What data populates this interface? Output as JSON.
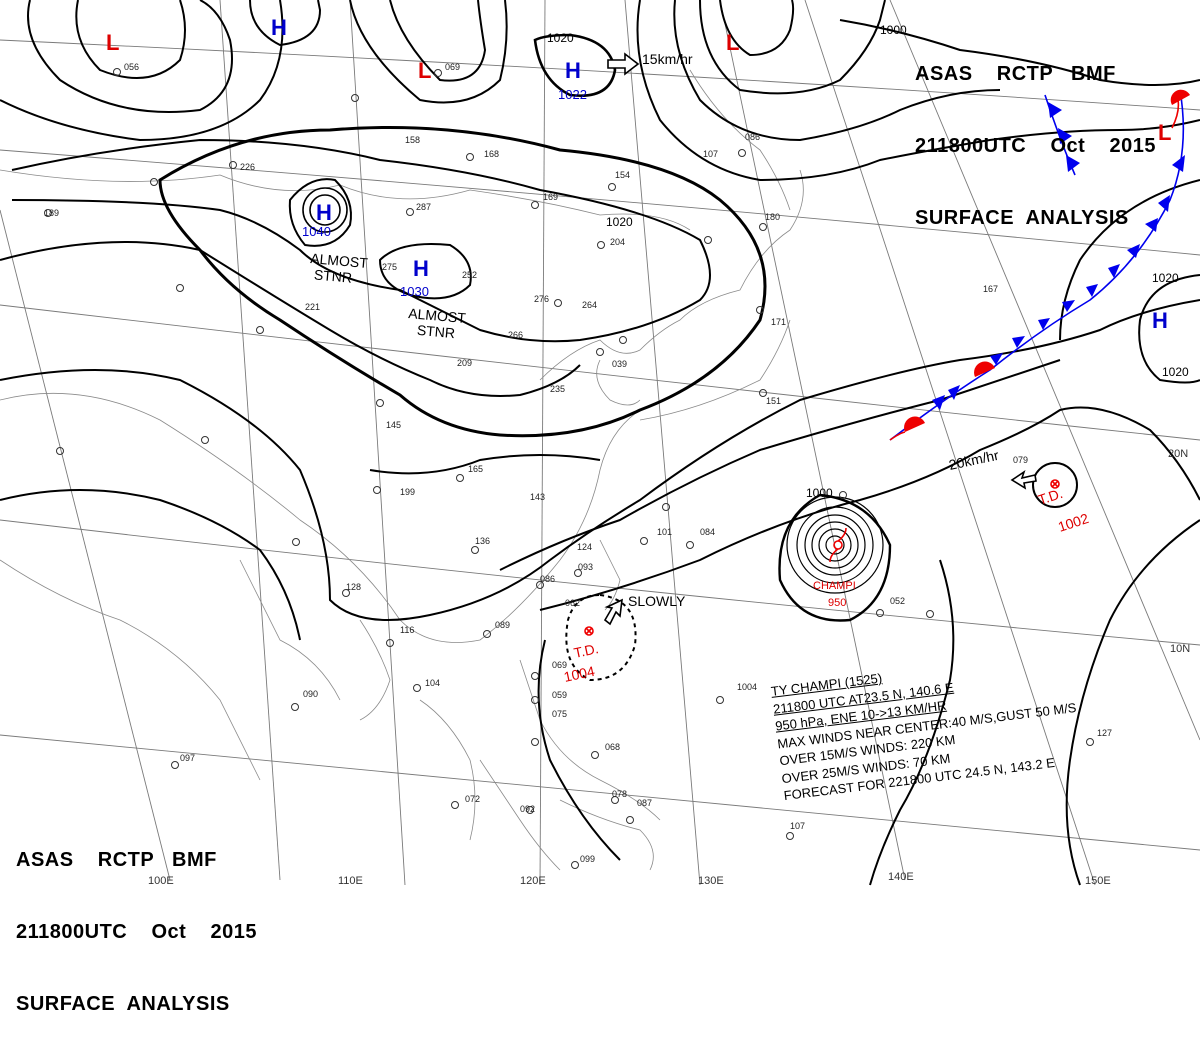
{
  "header": {
    "line1": "ASAS    RCTP   BMF",
    "line2": "211800UTC    Oct    2015",
    "line3": "SURFACE  ANALYSIS"
  },
  "longitudes": [
    "100E",
    "110E",
    "120E",
    "130E",
    "140E",
    "150E"
  ],
  "latitudes": [
    "10N",
    "20N"
  ],
  "isobar_labels": [
    "1020",
    "1020",
    "1000",
    "1020",
    "1000",
    "1020"
  ],
  "pressure_centers": [
    {
      "type": "H",
      "value": "1040",
      "color": "#0000cc"
    },
    {
      "type": "H",
      "value": "1030",
      "color": "#0000cc"
    },
    {
      "type": "H",
      "value": "1022",
      "color": "#0000cc"
    },
    {
      "type": "H",
      "value": "",
      "color": "#0000cc"
    },
    {
      "type": "H",
      "value": "",
      "color": "#0000cc"
    },
    {
      "type": "L",
      "value": "",
      "color": "#dd0000"
    },
    {
      "type": "L",
      "value": "",
      "color": "#dd0000"
    },
    {
      "type": "L",
      "value": "",
      "color": "#dd0000"
    },
    {
      "type": "L",
      "value": "",
      "color": "#dd0000"
    }
  ],
  "annotations": {
    "almost_stnr": "ALMOST\nSTNR",
    "high_speed": "15km/hr",
    "td_speed": "20km/hr",
    "slowly": "SLOWLY"
  },
  "tropical_systems": [
    {
      "name": "CHAMPI",
      "pressure": "950",
      "kind": "typhoon"
    },
    {
      "name": "T.D.",
      "pressure": "1002",
      "kind": "td"
    },
    {
      "name": "T.D.",
      "pressure": "1004",
      "kind": "td"
    }
  ],
  "typhoon_info": [
    "TY  CHAMPI (1525)",
    "211800 UTC  AT23.5 N, 140.6 E",
    "950 hPa, ENE  10->13 KM/HR",
    "MAX WINDS NEAR CENTER:40 M/S,GUST 50 M/S",
    "OVER 15M/S WINDS: 220 KM",
    "OVER 25M/S WINDS: 70 KM",
    "FORECAST FOR 221800 UTC 24.5 N, 143.2 E"
  ],
  "station_reports": [
    "056",
    "069",
    "158",
    "168",
    "287",
    "275",
    "252",
    "276",
    "264",
    "204",
    "169",
    "180",
    "167",
    "107",
    "154",
    "086",
    "145",
    "165",
    "143",
    "136",
    "128",
    "116",
    "104",
    "090",
    "097",
    "072",
    "089",
    "093",
    "084",
    "101",
    "124",
    "086",
    "062",
    "069",
    "059",
    "075",
    "068",
    "078",
    "087",
    "092",
    "099",
    "079",
    "052",
    "127",
    "107",
    "226",
    "266",
    "209",
    "189",
    "221",
    "151",
    "171",
    "235",
    "039",
    "199",
    "1004"
  ],
  "colors": {
    "isobar": "#000000",
    "grid": "#777777",
    "coast": "#777777",
    "high": "#0000cc",
    "low": "#dd0000",
    "cold_front": "#0000ee",
    "warm_front": "#ee0000"
  }
}
